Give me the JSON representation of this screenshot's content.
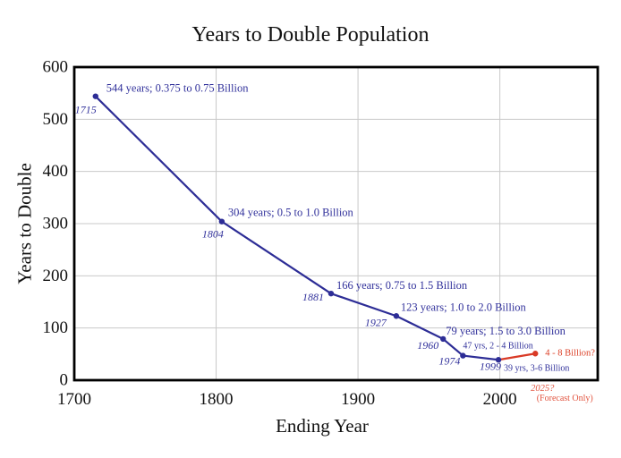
{
  "chart_data": {
    "type": "line",
    "title": "Years to Double Population",
    "xlabel": "Ending Year",
    "ylabel": "Years to Double",
    "xlim": [
      1700,
      2069
    ],
    "ylim": [
      0,
      600
    ],
    "x_ticks": [
      1700,
      1800,
      1900,
      2000
    ],
    "y_ticks": [
      0,
      100,
      200,
      300,
      400,
      500,
      600
    ],
    "grid": true,
    "legend": "none",
    "colors": {
      "history_line": "#2d2d96",
      "history_text": "#31319b",
      "forecast_line": "#d93a26",
      "forecast_text": "#dc4128",
      "forecast_note": "#e25540",
      "grid": "#c9c9c9",
      "axis": "#000000"
    },
    "points": [
      {
        "year": 1715,
        "value": 544,
        "series": "historical",
        "label": "544 years; 0.375 to 0.75 Billion",
        "year_label": "1715",
        "label_offset": [
          12,
          -5
        ],
        "year_offset": [
          1,
          19
        ]
      },
      {
        "year": 1804,
        "value": 304,
        "series": "historical",
        "label": "304 years; 0.5 to 1.0 Billion",
        "year_label": "1804",
        "label_offset": [
          7,
          -6
        ],
        "year_offset": [
          2,
          18
        ]
      },
      {
        "year": 1881,
        "value": 166,
        "series": "historical",
        "label": "166 years; 0.75 to 1.5 Billion",
        "year_label": "1881",
        "label_offset": [
          6,
          -5
        ],
        "year_offset": [
          -8,
          8
        ]
      },
      {
        "year": 1927,
        "value": 123,
        "series": "historical",
        "label": "123 years; 1.0 to 2.0 Billion",
        "year_label": "1927",
        "label_offset": [
          5,
          -6
        ],
        "year_offset": [
          -11,
          11
        ]
      },
      {
        "year": 1960,
        "value": 79,
        "series": "historical",
        "label": "79 years; 1.5 to 3.0 Billion",
        "year_label": "1960",
        "label_offset": [
          3,
          -5
        ],
        "year_offset": [
          -5,
          11
        ]
      },
      {
        "year": 1974,
        "value": 47,
        "series": "historical",
        "label": "47 yrs, 2 - 4 Billion",
        "year_label": "1974",
        "label_offset": [
          0,
          -8
        ],
        "year_offset": [
          -3,
          10
        ],
        "small": true
      },
      {
        "year": 1999,
        "value": 39,
        "series": "historical",
        "label": "39 yrs, 3-6 Billion",
        "year_label": "1999",
        "label_offset": [
          6,
          12
        ],
        "year_offset": [
          3,
          11
        ],
        "small": true
      },
      {
        "year": 2025,
        "value": 51,
        "series": "forecast",
        "label": "4 - 8 Billion?",
        "year_label": "2025?",
        "label_offset": [
          11,
          2
        ],
        "below_axis": true,
        "sub_label": "(Forecast Only)"
      }
    ]
  }
}
